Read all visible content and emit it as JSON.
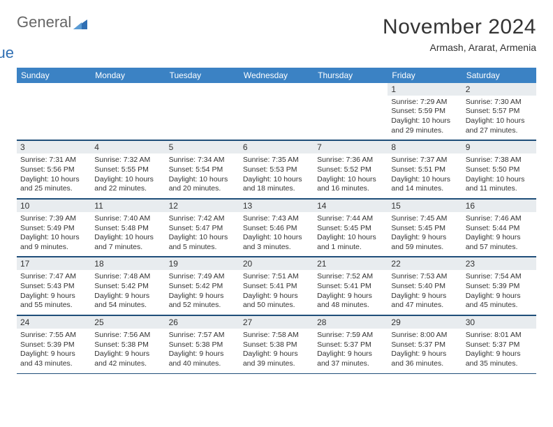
{
  "logo": {
    "text1": "General",
    "text2": "Blue",
    "color1": "#666666",
    "color2": "#2f6fb3",
    "tri_color": "#2f6fb3"
  },
  "title": "November 2024",
  "subtitle": "Armash, Ararat, Armenia",
  "header_bg": "#3b82c4",
  "daynum_bg": "#e8ecef",
  "rule_color": "#1f4e79",
  "columns": [
    "Sunday",
    "Monday",
    "Tuesday",
    "Wednesday",
    "Thursday",
    "Friday",
    "Saturday"
  ],
  "weeks": [
    [
      {
        "blank": true
      },
      {
        "blank": true
      },
      {
        "blank": true
      },
      {
        "blank": true
      },
      {
        "blank": true
      },
      {
        "n": "1",
        "sr": "7:29 AM",
        "ss": "5:59 PM",
        "dl": "10 hours and 29 minutes."
      },
      {
        "n": "2",
        "sr": "7:30 AM",
        "ss": "5:57 PM",
        "dl": "10 hours and 27 minutes."
      }
    ],
    [
      {
        "n": "3",
        "sr": "7:31 AM",
        "ss": "5:56 PM",
        "dl": "10 hours and 25 minutes."
      },
      {
        "n": "4",
        "sr": "7:32 AM",
        "ss": "5:55 PM",
        "dl": "10 hours and 22 minutes."
      },
      {
        "n": "5",
        "sr": "7:34 AM",
        "ss": "5:54 PM",
        "dl": "10 hours and 20 minutes."
      },
      {
        "n": "6",
        "sr": "7:35 AM",
        "ss": "5:53 PM",
        "dl": "10 hours and 18 minutes."
      },
      {
        "n": "7",
        "sr": "7:36 AM",
        "ss": "5:52 PM",
        "dl": "10 hours and 16 minutes."
      },
      {
        "n": "8",
        "sr": "7:37 AM",
        "ss": "5:51 PM",
        "dl": "10 hours and 14 minutes."
      },
      {
        "n": "9",
        "sr": "7:38 AM",
        "ss": "5:50 PM",
        "dl": "10 hours and 11 minutes."
      }
    ],
    [
      {
        "n": "10",
        "sr": "7:39 AM",
        "ss": "5:49 PM",
        "dl": "10 hours and 9 minutes."
      },
      {
        "n": "11",
        "sr": "7:40 AM",
        "ss": "5:48 PM",
        "dl": "10 hours and 7 minutes."
      },
      {
        "n": "12",
        "sr": "7:42 AM",
        "ss": "5:47 PM",
        "dl": "10 hours and 5 minutes."
      },
      {
        "n": "13",
        "sr": "7:43 AM",
        "ss": "5:46 PM",
        "dl": "10 hours and 3 minutes."
      },
      {
        "n": "14",
        "sr": "7:44 AM",
        "ss": "5:45 PM",
        "dl": "10 hours and 1 minute."
      },
      {
        "n": "15",
        "sr": "7:45 AM",
        "ss": "5:45 PM",
        "dl": "9 hours and 59 minutes."
      },
      {
        "n": "16",
        "sr": "7:46 AM",
        "ss": "5:44 PM",
        "dl": "9 hours and 57 minutes."
      }
    ],
    [
      {
        "n": "17",
        "sr": "7:47 AM",
        "ss": "5:43 PM",
        "dl": "9 hours and 55 minutes."
      },
      {
        "n": "18",
        "sr": "7:48 AM",
        "ss": "5:42 PM",
        "dl": "9 hours and 54 minutes."
      },
      {
        "n": "19",
        "sr": "7:49 AM",
        "ss": "5:42 PM",
        "dl": "9 hours and 52 minutes."
      },
      {
        "n": "20",
        "sr": "7:51 AM",
        "ss": "5:41 PM",
        "dl": "9 hours and 50 minutes."
      },
      {
        "n": "21",
        "sr": "7:52 AM",
        "ss": "5:41 PM",
        "dl": "9 hours and 48 minutes."
      },
      {
        "n": "22",
        "sr": "7:53 AM",
        "ss": "5:40 PM",
        "dl": "9 hours and 47 minutes."
      },
      {
        "n": "23",
        "sr": "7:54 AM",
        "ss": "5:39 PM",
        "dl": "9 hours and 45 minutes."
      }
    ],
    [
      {
        "n": "24",
        "sr": "7:55 AM",
        "ss": "5:39 PM",
        "dl": "9 hours and 43 minutes."
      },
      {
        "n": "25",
        "sr": "7:56 AM",
        "ss": "5:38 PM",
        "dl": "9 hours and 42 minutes."
      },
      {
        "n": "26",
        "sr": "7:57 AM",
        "ss": "5:38 PM",
        "dl": "9 hours and 40 minutes."
      },
      {
        "n": "27",
        "sr": "7:58 AM",
        "ss": "5:38 PM",
        "dl": "9 hours and 39 minutes."
      },
      {
        "n": "28",
        "sr": "7:59 AM",
        "ss": "5:37 PM",
        "dl": "9 hours and 37 minutes."
      },
      {
        "n": "29",
        "sr": "8:00 AM",
        "ss": "5:37 PM",
        "dl": "9 hours and 36 minutes."
      },
      {
        "n": "30",
        "sr": "8:01 AM",
        "ss": "5:37 PM",
        "dl": "9 hours and 35 minutes."
      }
    ]
  ],
  "labels": {
    "sunrise": "Sunrise: ",
    "sunset": "Sunset: ",
    "daylight": "Daylight: "
  }
}
